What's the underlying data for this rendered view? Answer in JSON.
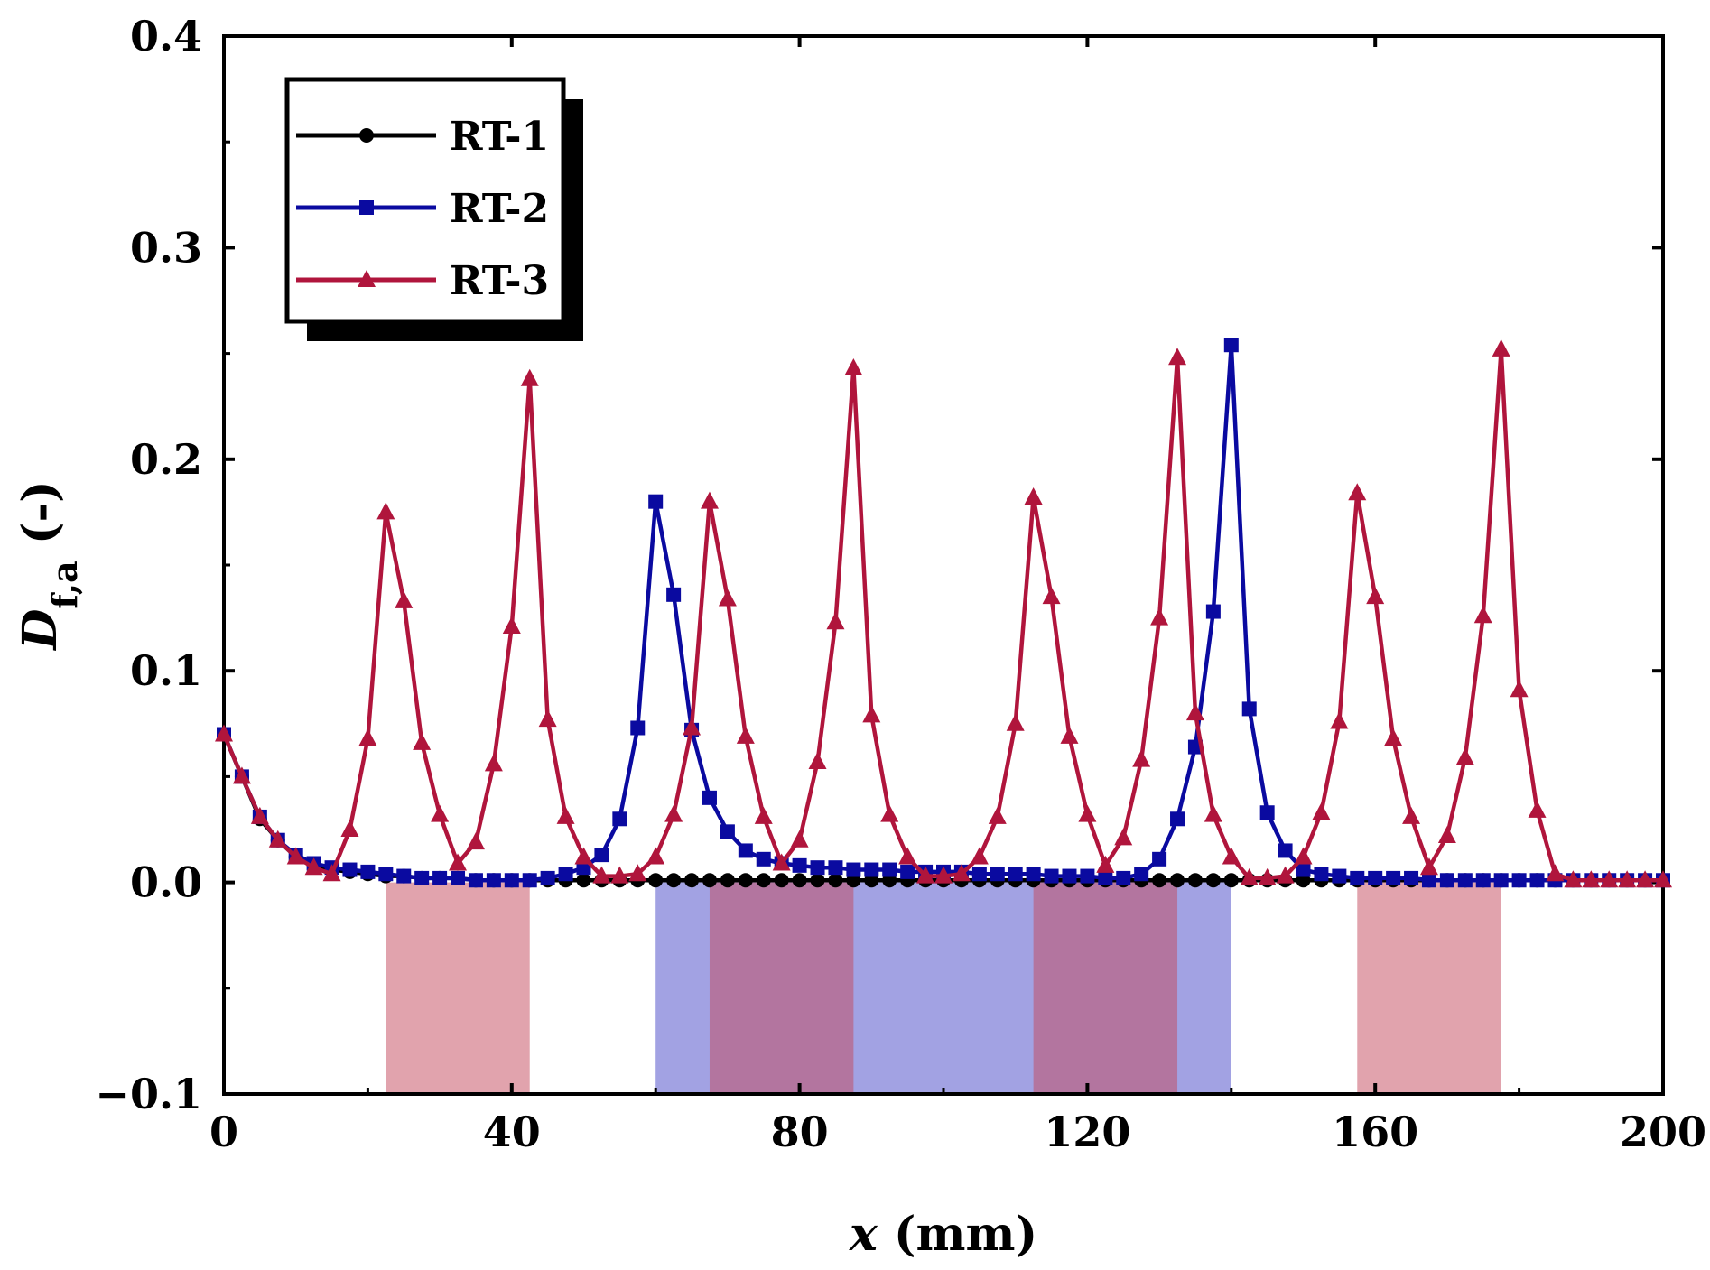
{
  "chart_data": {
    "type": "line",
    "title": "",
    "xlabel": "x (mm)",
    "ylabel": "D_f,a (-)",
    "xlim": [
      0,
      200
    ],
    "ylim": [
      -0.1,
      0.4
    ],
    "xticks": [
      "0",
      "40",
      "80",
      "120",
      "160",
      "200"
    ],
    "yticks": [
      "−0.1",
      "0.0",
      "0.1",
      "0.2",
      "0.3",
      "0.4"
    ],
    "grid": false,
    "legend_position": "top-left",
    "series": [
      {
        "name": "RT-1",
        "color": "#000000",
        "marker": "circle",
        "x": [
          0,
          2.5,
          5,
          7.5,
          10,
          12.5,
          15,
          17.5,
          20,
          22.5,
          25,
          27.5,
          30,
          32.5,
          35,
          37.5,
          40,
          42.5,
          45,
          47.5,
          50,
          52.5,
          55,
          57.5,
          60,
          62.5,
          65,
          67.5,
          70,
          72.5,
          75,
          77.5,
          80,
          82.5,
          85,
          87.5,
          90,
          92.5,
          95,
          97.5,
          100,
          102.5,
          105,
          107.5,
          110,
          112.5,
          115,
          117.5,
          120,
          122.5,
          125,
          127.5,
          130,
          132.5,
          135,
          137.5,
          140,
          142.5,
          145,
          147.5,
          150,
          152.5,
          155,
          157.5,
          160,
          162.5,
          165,
          167.5,
          170,
          172.5,
          175,
          177.5,
          180,
          182.5,
          185,
          187.5,
          190,
          192.5,
          195,
          197.5,
          200
        ],
        "y": [
          0.07,
          0.05,
          0.03,
          0.02,
          0.012,
          0.008,
          0.006,
          0.005,
          0.004,
          0.003,
          0.003,
          0.002,
          0.002,
          0.002,
          0.001,
          0.001,
          0.001,
          0.001,
          0.001,
          0.001,
          0.001,
          0.001,
          0.001,
          0.001,
          0.001,
          0.001,
          0.001,
          0.001,
          0.001,
          0.001,
          0.001,
          0.001,
          0.001,
          0.001,
          0.001,
          0.001,
          0.001,
          0.001,
          0.001,
          0.001,
          0.001,
          0.001,
          0.001,
          0.001,
          0.001,
          0.001,
          0.001,
          0.001,
          0.001,
          0.001,
          0.001,
          0.001,
          0.001,
          0.001,
          0.001,
          0.001,
          0.001,
          0.001,
          0.001,
          0.001,
          0.001,
          0.001,
          0.001,
          0.001,
          0.001,
          0.001,
          0.001,
          0.001,
          0.001,
          0.001,
          0.001,
          0.001,
          0.001,
          0.001,
          0.001,
          0.001,
          0.001,
          0.001,
          0.001,
          0.001,
          0.001
        ],
        "shaded_bands": []
      },
      {
        "name": "RT-2",
        "color": "#0a0aa0",
        "marker": "square",
        "x": [
          0,
          2.5,
          5,
          7.5,
          10,
          12.5,
          15,
          17.5,
          20,
          22.5,
          25,
          27.5,
          30,
          32.5,
          35,
          37.5,
          40,
          42.5,
          45,
          47.5,
          50,
          52.5,
          55,
          57.5,
          60,
          62.5,
          65,
          67.5,
          70,
          72.5,
          75,
          77.5,
          80,
          82.5,
          85,
          87.5,
          90,
          92.5,
          95,
          97.5,
          100,
          102.5,
          105,
          107.5,
          110,
          112.5,
          115,
          117.5,
          120,
          122.5,
          125,
          127.5,
          130,
          132.5,
          135,
          137.5,
          140,
          142.5,
          145,
          147.5,
          150,
          152.5,
          155,
          157.5,
          160,
          162.5,
          165,
          167.5,
          170,
          172.5,
          175,
          177.5,
          180,
          182.5,
          185,
          187.5,
          190,
          192.5,
          195,
          197.5,
          200
        ],
        "y": [
          0.07,
          0.05,
          0.031,
          0.02,
          0.013,
          0.009,
          0.007,
          0.006,
          0.005,
          0.004,
          0.003,
          0.002,
          0.002,
          0.002,
          0.001,
          0.001,
          0.001,
          0.001,
          0.002,
          0.004,
          0.007,
          0.013,
          0.03,
          0.073,
          0.18,
          0.136,
          0.072,
          0.04,
          0.024,
          0.015,
          0.011,
          0.009,
          0.008,
          0.007,
          0.007,
          0.006,
          0.006,
          0.006,
          0.005,
          0.005,
          0.005,
          0.005,
          0.004,
          0.004,
          0.004,
          0.004,
          0.003,
          0.003,
          0.003,
          0.002,
          0.002,
          0.004,
          0.011,
          0.03,
          0.064,
          0.128,
          0.254,
          0.082,
          0.033,
          0.015,
          0.006,
          0.004,
          0.003,
          0.002,
          0.002,
          0.002,
          0.002,
          0.001,
          0.001,
          0.001,
          0.001,
          0.001,
          0.001,
          0.001,
          0.001,
          0.001,
          0.001,
          0.001,
          0.001,
          0.001,
          0.001
        ],
        "shaded_bands": [
          [
            60,
            140
          ]
        ]
      },
      {
        "name": "RT-3",
        "color": "#b0153c",
        "marker": "triangle",
        "x": [
          0,
          2.5,
          5,
          7.5,
          10,
          12.5,
          15,
          17.5,
          20,
          22.5,
          25,
          27.5,
          30,
          32.5,
          35,
          37.5,
          40,
          42.5,
          45,
          47.5,
          50,
          52.5,
          55,
          57.5,
          60,
          62.5,
          65,
          67.5,
          70,
          72.5,
          75,
          77.5,
          80,
          82.5,
          85,
          87.5,
          90,
          92.5,
          95,
          97.5,
          100,
          102.5,
          105,
          107.5,
          110,
          112.5,
          115,
          117.5,
          120,
          122.5,
          125,
          127.5,
          130,
          132.5,
          135,
          137.5,
          140,
          142.5,
          145,
          147.5,
          150,
          152.5,
          155,
          157.5,
          160,
          162.5,
          165,
          167.5,
          170,
          172.5,
          175,
          177.5,
          180,
          182.5,
          185,
          187.5,
          190,
          192.5,
          195,
          197.5,
          200
        ],
        "y": [
          0.07,
          0.05,
          0.031,
          0.02,
          0.012,
          0.007,
          0.004,
          0.025,
          0.068,
          0.175,
          0.133,
          0.066,
          0.032,
          0.009,
          0.019,
          0.056,
          0.121,
          0.238,
          0.077,
          0.031,
          0.012,
          0.003,
          0.003,
          0.004,
          0.012,
          0.032,
          0.073,
          0.18,
          0.134,
          0.069,
          0.031,
          0.009,
          0.02,
          0.057,
          0.123,
          0.243,
          0.079,
          0.032,
          0.012,
          0.003,
          0.003,
          0.004,
          0.012,
          0.031,
          0.075,
          0.182,
          0.135,
          0.069,
          0.032,
          0.008,
          0.021,
          0.058,
          0.125,
          0.248,
          0.08,
          0.032,
          0.012,
          0.002,
          0.002,
          0.003,
          0.012,
          0.033,
          0.076,
          0.184,
          0.135,
          0.068,
          0.031,
          0.007,
          0.022,
          0.059,
          0.126,
          0.252,
          0.091,
          0.034,
          0.004,
          0.001,
          0.001,
          0.001,
          0.001,
          0.001,
          0.001
        ],
        "shaded_bands": [
          [
            22.5,
            42.5
          ],
          [
            67.5,
            87.5
          ],
          [
            112.5,
            132.5
          ],
          [
            157.5,
            177.5
          ]
        ]
      }
    ]
  }
}
